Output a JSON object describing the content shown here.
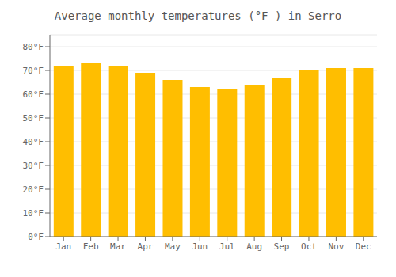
{
  "chart_data": {
    "type": "bar",
    "title": "Average monthly temperatures (°F ) in Serro",
    "categories": [
      "Jan",
      "Feb",
      "Mar",
      "Apr",
      "May",
      "Jun",
      "Jul",
      "Aug",
      "Sep",
      "Oct",
      "Nov",
      "Dec"
    ],
    "values": [
      72,
      73,
      72,
      69,
      66,
      63,
      62,
      64,
      67,
      70,
      71,
      71
    ],
    "color": "#FFBE00",
    "ylim": [
      0,
      85
    ],
    "yticks": [
      {
        "value": 0,
        "label": "0°F"
      },
      {
        "value": 10,
        "label": "10°F"
      },
      {
        "value": 20,
        "label": "20°F"
      },
      {
        "value": 30,
        "label": "30°F"
      },
      {
        "value": 40,
        "label": "40°F"
      },
      {
        "value": 50,
        "label": "50°F"
      },
      {
        "value": 60,
        "label": "60°F"
      },
      {
        "value": 70,
        "label": "70°F"
      },
      {
        "value": 80,
        "label": "80°F"
      }
    ],
    "grid": true
  }
}
